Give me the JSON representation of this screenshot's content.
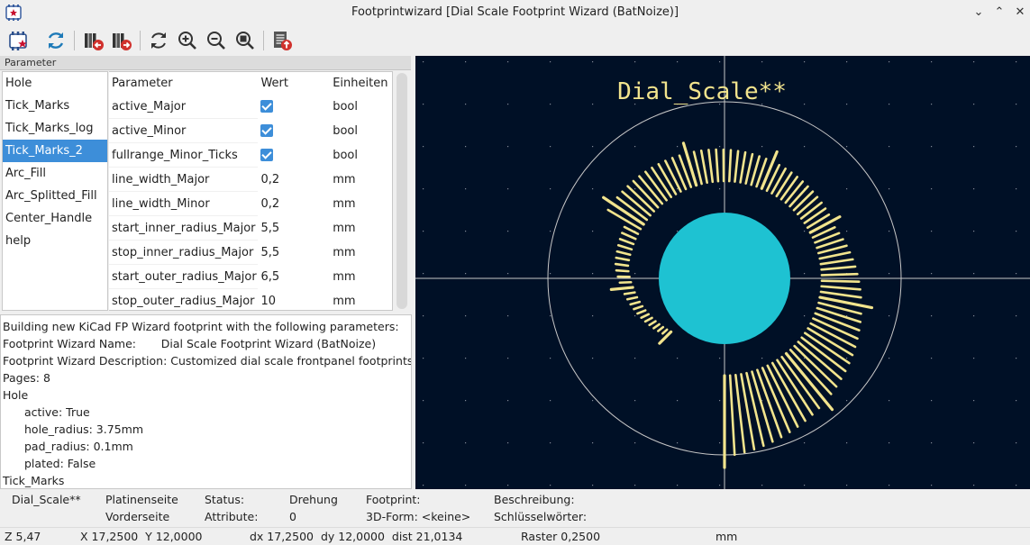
{
  "window": {
    "title": "Footprintwizard [Dial Scale Footprint Wizard (BatNoize)]",
    "controls": [
      "⌄",
      "⌃",
      "✕"
    ]
  },
  "toolbar": {
    "icons": [
      "select-wizard-icon",
      "reload-icon",
      "previous-page-icon",
      "next-page-icon",
      "redraw-icon",
      "zoom-in-icon",
      "zoom-out-icon",
      "zoom-fit-icon",
      "export-footprint-icon"
    ]
  },
  "params": {
    "header": "Parameter",
    "pages": [
      "Hole",
      "Tick_Marks",
      "Tick_Marks_log",
      "Tick_Marks_2",
      "Arc_Fill",
      "Arc_Splitted_Fill",
      "Center_Handle",
      "help"
    ],
    "selected_page": "Tick_Marks_2",
    "columns": [
      "Parameter",
      "Wert",
      "Einheiten"
    ],
    "rows": [
      {
        "name": "active_Major",
        "value": "",
        "checked": true,
        "unit": "bool"
      },
      {
        "name": "active_Minor",
        "value": "",
        "checked": true,
        "unit": "bool"
      },
      {
        "name": "fullrange_Minor_Ticks",
        "value": "",
        "checked": true,
        "unit": "bool"
      },
      {
        "name": "line_width_Major",
        "value": "0,2",
        "unit": "mm"
      },
      {
        "name": "line_width_Minor",
        "value": "0,2",
        "unit": "mm"
      },
      {
        "name": "start_inner_radius_Major",
        "value": "5,5",
        "unit": "mm"
      },
      {
        "name": "stop_inner_radius_Major",
        "value": "5,5",
        "unit": "mm"
      },
      {
        "name": "start_outer_radius_Major",
        "value": "6,5",
        "unit": "mm"
      },
      {
        "name": "stop_outer_radius_Major",
        "value": "10",
        "unit": "mm"
      }
    ]
  },
  "log": {
    "lines": [
      {
        "text": "Building new KiCad FP Wizard footprint with the following parameters:",
        "indent": false
      },
      {
        "text": "Footprint Wizard Name:       Dial Scale Footprint Wizard (BatNoize)",
        "indent": false
      },
      {
        "text": "Footprint Wizard Description: Customized dial scale frontpanel footprints.",
        "indent": false
      },
      {
        "text": "Pages: 8",
        "indent": false
      },
      {
        "text": "Hole",
        "indent": false
      },
      {
        "text": "active: True",
        "indent": true
      },
      {
        "text": "hole_radius: 3.75mm",
        "indent": true
      },
      {
        "text": "pad_radius: 0.1mm",
        "indent": true
      },
      {
        "text": "plated: False",
        "indent": true
      },
      {
        "text": "Tick_Marks",
        "indent": false
      }
    ]
  },
  "canvas": {
    "footprint_label": "Dial_Scale**",
    "background": "#001026",
    "pad_color": "#1ec2d2",
    "tick_color": "#f2e48d",
    "grid_color": "#c8c8c8"
  },
  "msgpanel": {
    "ref": "Dial_Scale**",
    "side_label": "Platinenseite",
    "side_value": "Vorderseite",
    "status_label": "Status:",
    "attr_label": "Attribute:",
    "rotation_label": "Drehung",
    "rotation_value": "0",
    "footprint_label": "Footprint:",
    "model_label": "3D-Form: <keine>",
    "desc_label": "Beschreibung:",
    "keywords_label": "Schlüsselwörter:"
  },
  "statusbar": {
    "zoom": "Z 5,47",
    "xy": "X 17,2500  Y 12,0000",
    "dxy": "dx 17,2500  dy 12,0000  dist 21,0134",
    "grid": "Raster 0,2500",
    "units": "mm"
  }
}
